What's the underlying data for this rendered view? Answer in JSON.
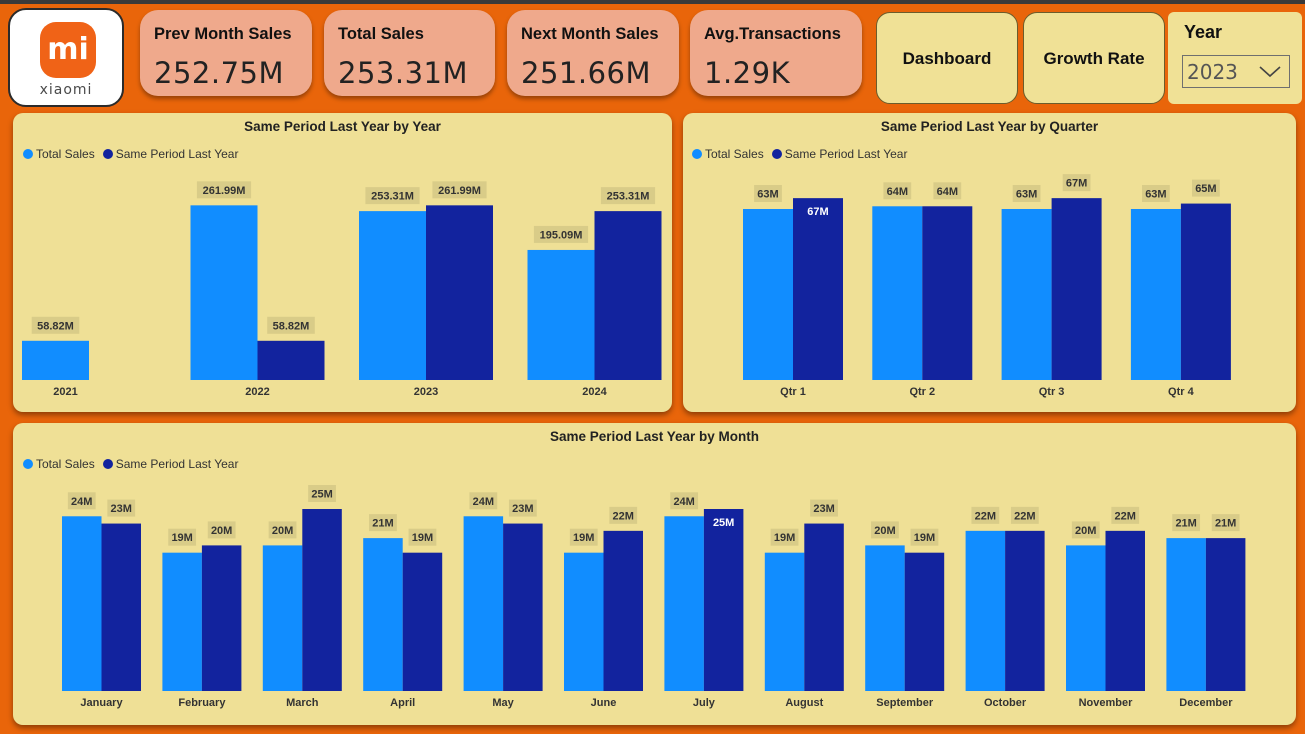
{
  "brand": {
    "logo_mark": "mi",
    "logo_text": "xiaomi",
    "accent": "#f06317"
  },
  "kpis": [
    {
      "label": "Prev Month Sales",
      "value": "252.75M"
    },
    {
      "label": "Total Sales",
      "value": "253.31M"
    },
    {
      "label": "Next Month Sales",
      "value": "251.66M"
    },
    {
      "label": "Avg.Transactions",
      "value": "1.29K"
    }
  ],
  "nav": {
    "dashboard": "Dashboard",
    "growth": "Growth Rate"
  },
  "year_slicer": {
    "title": "Year",
    "selected": "2023",
    "icon": "chevron-down-icon"
  },
  "legend": {
    "total": "Total Sales",
    "last": "Same Period Last Year"
  },
  "colors": {
    "total": "#118dff",
    "last": "#12239e",
    "label_bg": "#d9cc88",
    "panel": "#efe096",
    "background": "#e9650a"
  },
  "chart_data": [
    {
      "type": "bar",
      "title": "Same Period Last Year by Year",
      "categories": [
        "2021",
        "2022",
        "2023",
        "2024"
      ],
      "series": [
        {
          "name": "Total Sales",
          "values": [
            58.82,
            261.99,
            253.31,
            195.09
          ],
          "labels": [
            "58.82M",
            "261.99M",
            "253.31M",
            "195.09M"
          ]
        },
        {
          "name": "Same Period Last Year",
          "values": [
            null,
            58.82,
            261.99,
            253.31
          ],
          "labels": [
            "",
            "58.82M",
            "261.99M",
            "253.31M"
          ]
        }
      ],
      "ylim": [
        0,
        300
      ]
    },
    {
      "type": "bar",
      "title": "Same Period Last Year by Quarter",
      "categories": [
        "Qtr 1",
        "Qtr 2",
        "Qtr 3",
        "Qtr 4"
      ],
      "series": [
        {
          "name": "Total Sales",
          "values": [
            63,
            64,
            63,
            63
          ],
          "labels": [
            "63M",
            "64M",
            "63M",
            "63M"
          ]
        },
        {
          "name": "Same Period Last Year",
          "values": [
            67,
            64,
            67,
            65
          ],
          "labels": [
            "67M",
            "64M",
            "67M",
            "65M"
          ]
        }
      ],
      "ylim": [
        0,
        70
      ]
    },
    {
      "type": "bar",
      "title": "Same Period Last Year by Month",
      "categories": [
        "January",
        "February",
        "March",
        "April",
        "May",
        "June",
        "July",
        "August",
        "September",
        "October",
        "November",
        "December"
      ],
      "series": [
        {
          "name": "Total Sales",
          "values": [
            24,
            19,
            20,
            21,
            24,
            19,
            24,
            19,
            20,
            22,
            20,
            21
          ],
          "labels": [
            "24M",
            "19M",
            "20M",
            "21M",
            "24M",
            "19M",
            "24M",
            "19M",
            "20M",
            "22M",
            "20M",
            "21M"
          ]
        },
        {
          "name": "Same Period Last Year",
          "values": [
            23,
            20,
            25,
            19,
            23,
            22,
            25,
            23,
            19,
            22,
            22,
            21
          ],
          "labels": [
            "23M",
            "20M",
            "25M",
            "19M",
            "23M",
            "22M",
            "25M",
            "23M",
            "19M",
            "22M",
            "22M",
            "21M"
          ]
        }
      ],
      "ylim": [
        0,
        25
      ]
    }
  ]
}
